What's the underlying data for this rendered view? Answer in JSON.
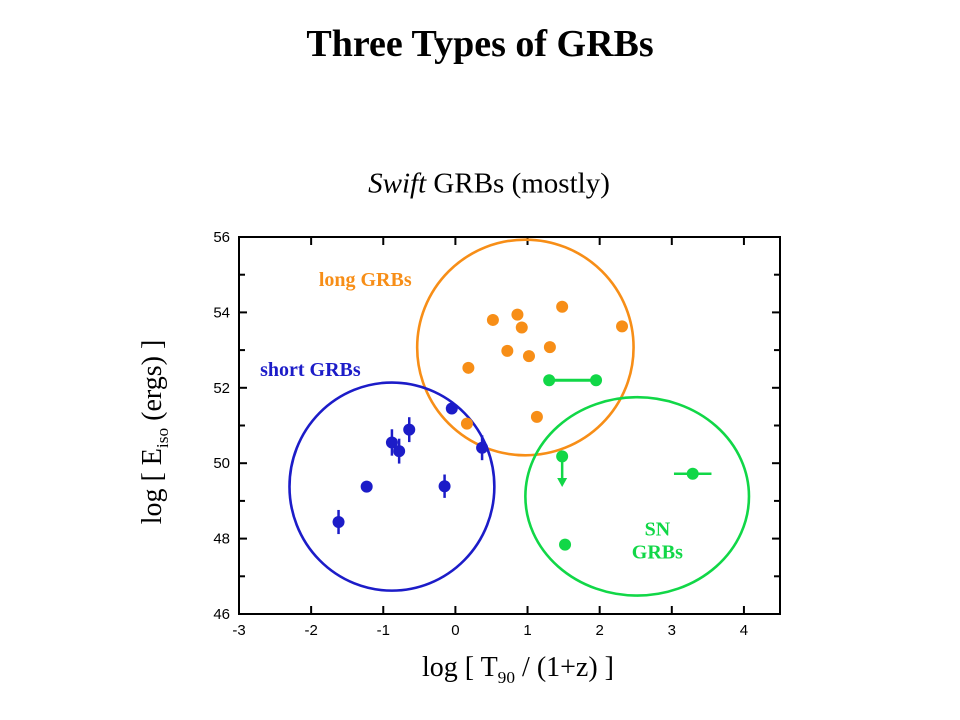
{
  "slide": {
    "title": "Three Types of GRBs",
    "subtitle": {
      "italic": "Swift",
      "rest": " GRBs (mostly)"
    }
  },
  "chart_data": {
    "type": "scatter",
    "title": "Swift GRBs (mostly)",
    "axes": {
      "xlim": [
        -3,
        4.5
      ],
      "ylim": [
        46,
        56
      ],
      "xticks": [
        -3,
        -2,
        -1,
        0,
        1,
        2,
        3,
        4
      ],
      "yticks_major": [
        46,
        48,
        50,
        52,
        54,
        56
      ],
      "yticks_minor": [
        47,
        49,
        51,
        53,
        55
      ],
      "xlabel": {
        "prefix": "log [ T",
        "sub": "90",
        "suffix": " / (1+z) ]"
      },
      "ylabel": {
        "prefix": "log [ E",
        "sub": "iso",
        "suffix": " (ergs) ]"
      },
      "grid": false
    },
    "colors": {
      "long": "#f78e17",
      "short": "#1c1cc8",
      "sn": "#11d747",
      "axis": "#000000",
      "background": "#ffffff"
    },
    "series": [
      {
        "name": "long GRBs",
        "color_key": "long",
        "marker": "filled-circle",
        "points": [
          {
            "x": 0.52,
            "y": 53.8
          },
          {
            "x": 0.86,
            "y": 53.94
          },
          {
            "x": 0.92,
            "y": 53.6
          },
          {
            "x": 1.48,
            "y": 54.15
          },
          {
            "x": 2.31,
            "y": 53.63
          },
          {
            "x": 1.31,
            "y": 53.08
          },
          {
            "x": 0.72,
            "y": 52.98
          },
          {
            "x": 1.02,
            "y": 52.84
          },
          {
            "x": 0.18,
            "y": 52.53
          },
          {
            "x": 1.13,
            "y": 51.23
          },
          {
            "x": 0.16,
            "y": 51.05
          }
        ]
      },
      {
        "name": "short GRBs",
        "color_key": "short",
        "marker": "filled-circle-yerr",
        "points": [
          {
            "x": -0.05,
            "y": 51.45,
            "yerr": 0.15
          },
          {
            "x": -0.64,
            "y": 50.89,
            "yerr": 0.33
          },
          {
            "x": -0.88,
            "y": 50.55,
            "yerr": 0.35
          },
          {
            "x": -0.78,
            "y": 50.32,
            "yerr": 0.33
          },
          {
            "x": 0.37,
            "y": 50.41,
            "yerr": 0.33
          },
          {
            "x": -1.23,
            "y": 49.38
          },
          {
            "x": -0.15,
            "y": 49.39,
            "yerr": 0.31
          },
          {
            "x": -1.62,
            "y": 48.44,
            "yerr": 0.32
          }
        ]
      },
      {
        "name": "SN GRBs",
        "color_key": "sn",
        "marker": "filled-circle",
        "connector": {
          "from": [
            1.3,
            52.2
          ],
          "to": [
            1.95,
            52.2
          ]
        },
        "points": [
          {
            "x": 1.3,
            "y": 52.2
          },
          {
            "x": 1.95,
            "y": 52.2
          },
          {
            "x": 1.48,
            "y": 50.18,
            "upper_limit_to": 49.37
          },
          {
            "x": 3.29,
            "y": 49.72,
            "xerr": 0.26
          },
          {
            "x": 1.52,
            "y": 47.84
          }
        ]
      }
    ],
    "ellipses": [
      {
        "group": "long GRBs",
        "color_key": "long",
        "cx": 0.97,
        "cy": 53.07,
        "rx": 1.5,
        "ry": 2.86
      },
      {
        "group": "short GRBs",
        "color_key": "short",
        "cx": -0.88,
        "cy": 49.38,
        "rx": 1.42,
        "ry": 2.76
      },
      {
        "group": "SN GRBs",
        "color_key": "sn",
        "cx": 2.52,
        "cy": 49.12,
        "rx": 1.55,
        "ry": 2.63
      }
    ],
    "annotations": [
      {
        "text": "long GRBs",
        "x": -1.25,
        "y": 54.86,
        "color_key": "long"
      },
      {
        "text": "short GRBs",
        "x": -2.01,
        "y": 52.47,
        "color_key": "short"
      },
      {
        "text": "SN\nGRBs",
        "x": 2.8,
        "y": 47.95,
        "color_key": "sn"
      }
    ]
  }
}
